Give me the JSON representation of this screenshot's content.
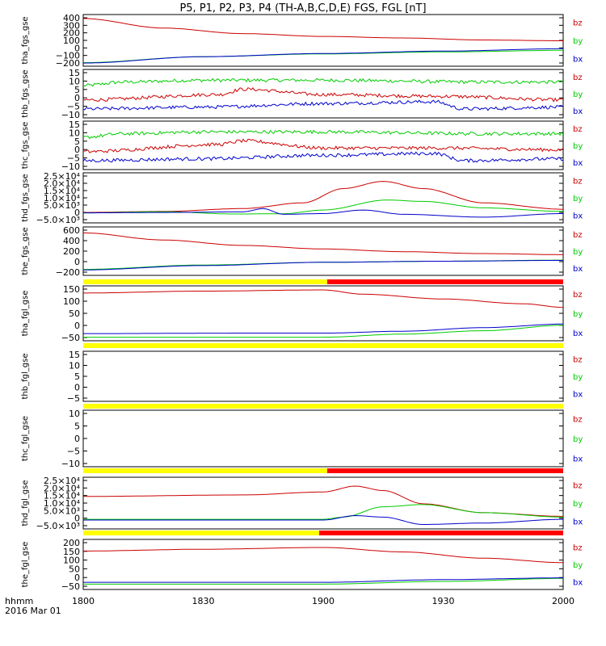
{
  "title": "P5, P1, P2, P3, P4 (TH-A,B,C,D,E) FGS, FGL [nT]",
  "footer": {
    "line1": "hhmm",
    "line2": "2016 Mar 01"
  },
  "colors": {
    "bx": "#0000cc",
    "by": "#00cc00",
    "bz": "#cc0000",
    "flag_yellow": "#ffff00",
    "flag_red": "#ff0000"
  },
  "chart_data": {
    "type": "line",
    "x_axis": {
      "range": [
        "18:00",
        "20:00"
      ],
      "ticks": [
        "1800",
        "1830",
        "1900",
        "1930",
        "2000"
      ]
    },
    "panels": [
      {
        "ylabel": "tha_fgs_gse",
        "yrange": [
          -230,
          420
        ],
        "yticks": [
          "400",
          "300",
          "200",
          "100",
          "0",
          "−100",
          "−200"
        ],
        "mode": "smooth",
        "series": [
          {
            "name": "bz",
            "x": [
              0,
              20,
              40,
              60,
              80,
              100,
              120
            ],
            "y": [
              370,
              250,
              180,
              145,
              125,
              100,
              90
            ]
          },
          {
            "name": "by",
            "x": [
              0,
              30,
              60,
              90,
              120
            ],
            "y": [
              -185,
              -110,
              -75,
              -50,
              -30
            ]
          },
          {
            "name": "bx",
            "x": [
              0,
              30,
              60,
              90,
              120
            ],
            "y": [
              -190,
              -110,
              -70,
              -40,
              -10
            ]
          }
        ]
      },
      {
        "ylabel": "thb_fgs_gse",
        "yrange": [
          -11,
          16
        ],
        "yticks": [
          "15",
          "10",
          "5",
          "0",
          "−5",
          "−10"
        ],
        "mode": "noisy",
        "series": [
          {
            "name": "by",
            "x": [
              0,
              10,
              30,
              60,
              100,
              120
            ],
            "y": [
              7,
              9,
              10,
              10,
              9,
              9
            ]
          },
          {
            "name": "bz",
            "x": [
              0,
              34,
              40,
              60,
              90,
              120
            ],
            "y": [
              -1,
              2,
              5,
              2,
              1,
              -1
            ]
          },
          {
            "name": "bx",
            "x": [
              0,
              30,
              60,
              88,
              95,
              120
            ],
            "y": [
              -6,
              -5,
              -3,
              -2,
              -6,
              -5
            ]
          }
        ]
      },
      {
        "ylabel": "thc_fgs_gse",
        "yrange": [
          -11,
          16
        ],
        "yticks": [
          "15",
          "10",
          "5",
          "0",
          "−5",
          "−10"
        ],
        "mode": "noisy",
        "series": [
          {
            "name": "by",
            "x": [
              0,
              10,
              30,
              60,
              100,
              120
            ],
            "y": [
              7,
              9,
              10,
              10,
              9,
              9
            ]
          },
          {
            "name": "bz",
            "x": [
              0,
              34,
              40,
              60,
              90,
              120
            ],
            "y": [
              -1,
              3,
              5,
              1,
              1,
              0
            ]
          },
          {
            "name": "bx",
            "x": [
              0,
              30,
              60,
              88,
              95,
              120
            ],
            "y": [
              -6,
              -5,
              -3,
              -2,
              -6,
              -5
            ]
          }
        ]
      },
      {
        "ylabel": "thd_fgs_gse",
        "yrange": [
          -7000,
          28000
        ],
        "yticks": [
          "2.5×10⁴",
          "2.0×10⁴",
          "1.5×10⁴",
          "1.0×10⁴",
          "5.0×10³",
          "0",
          "−5.0×10³"
        ],
        "mode": "smooth",
        "series": [
          {
            "name": "bz",
            "x": [
              0,
              20,
              40,
              55,
              65,
              75,
              85,
              100,
              120
            ],
            "y": [
              300,
              1000,
              3000,
              7000,
              17000,
              22000,
              17000,
              7000,
              2500
            ]
          },
          {
            "name": "by",
            "x": [
              0,
              20,
              38,
              50,
              60,
              76,
              85,
              100,
              120
            ],
            "y": [
              0,
              800,
              -800,
              -600,
              2000,
              9000,
              8000,
              3500,
              1000
            ]
          },
          {
            "name": "bx",
            "x": [
              0,
              20,
              40,
              45,
              50,
              60,
              70,
              80,
              100,
              120
            ],
            "y": [
              0,
              300,
              700,
              3000,
              -1000,
              -500,
              2000,
              -1000,
              -3000,
              -500
            ]
          }
        ]
      },
      {
        "ylabel": "the_fgs_gse",
        "yrange": [
          -270,
          620
        ],
        "yticks": [
          "600",
          "400",
          "200",
          "0",
          "−200"
        ],
        "mode": "smooth",
        "series": [
          {
            "name": "bz",
            "x": [
              0,
              20,
              40,
              60,
              80,
              100,
              120
            ],
            "y": [
              510,
              380,
              280,
              215,
              165,
              130,
              110
            ]
          },
          {
            "name": "by",
            "x": [
              0,
              30,
              60,
              90,
              120
            ],
            "y": [
              -160,
              -80,
              -30,
              -10,
              10
            ]
          },
          {
            "name": "bx",
            "x": [
              0,
              30,
              60,
              90,
              120
            ],
            "y": [
              -170,
              -90,
              -30,
              -10,
              5
            ]
          }
        ]
      },
      {
        "ylabel": "tha_fgl_gse",
        "yrange": [
          -60,
          170
        ],
        "yticks": [
          "150",
          "100",
          "50",
          "0",
          "−50"
        ],
        "mode": "smooth",
        "series": [
          {
            "name": "bz",
            "x": [
              0,
              30,
              60,
              70,
              90,
              110,
              120
            ],
            "y": [
              140,
              148,
              153,
              135,
              115,
              95,
              80
            ]
          },
          {
            "name": "by",
            "x": [
              0,
              40,
              60,
              80,
              100,
              120
            ],
            "y": [
              -45,
              -45,
              -45,
              -32,
              -18,
              5
            ]
          },
          {
            "name": "bx",
            "x": [
              0,
              40,
              60,
              80,
              100,
              120
            ],
            "y": [
              -30,
              -28,
              -28,
              -20,
              -5,
              10
            ]
          }
        ]
      },
      {
        "ylabel": "thb_fgl_gse",
        "yrange": [
          -7,
          17
        ],
        "yticks": [
          "15",
          "10",
          "5",
          "0",
          "−5"
        ],
        "mode": "smooth",
        "series": []
      },
      {
        "ylabel": "thc_fgl_gse",
        "yrange": [
          -13,
          12
        ],
        "yticks": [
          "10",
          "5",
          "0",
          "−5",
          "−10"
        ],
        "mode": "smooth",
        "series": []
      },
      {
        "ylabel": "thd_fgl_gse",
        "yrange": [
          -7000,
          28000
        ],
        "yticks": [
          "2.5×10⁴",
          "2.0×10⁴",
          "1.5×10⁴",
          "1.0×10⁴",
          "5.0×10³",
          "0",
          "−5.0×10³"
        ],
        "mode": "smooth",
        "series": [
          {
            "name": "bz",
            "x": [
              0,
              40,
              60,
              68,
              75,
              85,
              100,
              120
            ],
            "y": [
              15000,
              16000,
              18000,
              22000,
              19000,
              10000,
              4000,
              1500
            ]
          },
          {
            "name": "by",
            "x": [
              0,
              60,
              65,
              75,
              85,
              100,
              120
            ],
            "y": [
              -500,
              -500,
              1000,
              8000,
              9500,
              4000,
              1000
            ]
          },
          {
            "name": "bx",
            "x": [
              0,
              60,
              68,
              75,
              85,
              100,
              120
            ],
            "y": [
              -1000,
              -1000,
              2000,
              1000,
              -4000,
              -3000,
              -500
            ]
          }
        ]
      },
      {
        "ylabel": "the_fgl_gse",
        "yrange": [
          -60,
          220
        ],
        "yticks": [
          "200",
          "150",
          "100",
          "50",
          "0",
          "−50"
        ],
        "mode": "smooth",
        "series": [
          {
            "name": "bz",
            "x": [
              0,
              30,
              60,
              80,
              100,
              120
            ],
            "y": [
              155,
              165,
              175,
              150,
              115,
              90
            ]
          },
          {
            "name": "by",
            "x": [
              0,
              40,
              60,
              90,
              120
            ],
            "y": [
              -30,
              -30,
              -30,
              -15,
              2
            ]
          },
          {
            "name": "bx",
            "x": [
              0,
              40,
              60,
              90,
              120
            ],
            "y": [
              -20,
              -20,
              -20,
              -5,
              5
            ]
          }
        ]
      }
    ],
    "flag_bars": [
      {
        "after_panel": 4,
        "segments": [
          {
            "start": 0,
            "end": 61,
            "color": "yellow"
          },
          {
            "start": 61,
            "end": 120,
            "color": "red"
          }
        ]
      },
      {
        "after_panel": 5,
        "segments": [
          {
            "start": 0,
            "end": 120,
            "color": "yellow"
          }
        ]
      },
      {
        "after_panel": 6,
        "segments": [
          {
            "start": 0,
            "end": 120,
            "color": "yellow"
          }
        ]
      },
      {
        "after_panel": 7,
        "segments": [
          {
            "start": 0,
            "end": 61,
            "color": "yellow"
          },
          {
            "start": 61,
            "end": 120,
            "color": "red"
          }
        ]
      },
      {
        "after_panel": 8,
        "segments": [
          {
            "start": 0,
            "end": 59,
            "color": "yellow"
          },
          {
            "start": 59,
            "end": 120,
            "color": "red"
          }
        ]
      }
    ],
    "legend_labels": [
      "bz",
      "by",
      "bx"
    ]
  }
}
